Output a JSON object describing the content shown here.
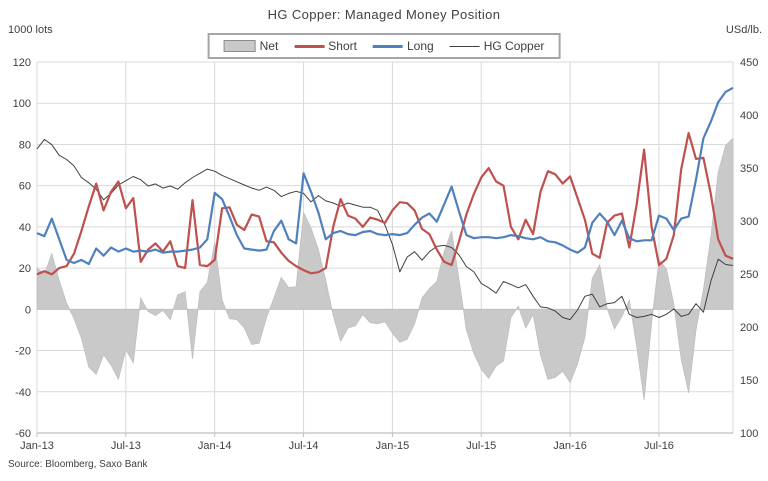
{
  "header": {
    "title": "HG Copper: Managed Money Position",
    "left_unit": "1000 lots",
    "right_unit": "USd/lb."
  },
  "legend": {
    "items": [
      {
        "label": "Net",
        "swatch": "area",
        "color": "#c9c9c9"
      },
      {
        "label": "Short",
        "swatch": "line",
        "color": "#c0504d"
      },
      {
        "label": "Long",
        "swatch": "line",
        "color": "#4f81bd"
      },
      {
        "label": "HG Copper",
        "swatch": "thin-line",
        "color": "#404040"
      }
    ]
  },
  "footer": {
    "source": "Source: Bloomberg, Saxo Bank"
  },
  "colors": {
    "net_fill": "#c9c9c9",
    "net_edge": "#bfbfbf",
    "short": "#c0504d",
    "long": "#4f81bd",
    "copper": "#404040",
    "grid": "#d9d9d9",
    "axis": "#bfbfbf",
    "text": "#404040"
  },
  "chart_data": {
    "type": "line",
    "title": "HG Copper: Managed Money Position",
    "x_range_note": "biweekly points, Jan-2013 to Dec-2016",
    "x_tick_labels": [
      "Jan-13",
      "Jul-13",
      "Jan-14",
      "Jul-14",
      "Jan-15",
      "Jul-15",
      "Jan-16",
      "Jul-16"
    ],
    "x_tick_month_index": [
      0,
      6,
      12,
      18,
      24,
      30,
      36,
      42
    ],
    "months_span": 47,
    "left_axis": {
      "label": "1000 lots",
      "min": -60,
      "max": 120,
      "ticks": [
        120,
        100,
        80,
        60,
        40,
        20,
        0,
        -20,
        -40,
        -60
      ]
    },
    "right_axis": {
      "label": "USd/lb.",
      "min": 100,
      "max": 450,
      "ticks": [
        450,
        400,
        350,
        300,
        250,
        200,
        150,
        100
      ]
    },
    "grid": true,
    "legend_position": "top",
    "series": [
      {
        "name": "Net",
        "axis": "left",
        "type": "area",
        "values": [
          20,
          17,
          27,
          14,
          3,
          -4.5,
          -14,
          -28,
          -31.5,
          -22,
          -27,
          -34,
          -19.5,
          -26,
          5.5,
          -1,
          -3,
          -0.5,
          -5,
          7,
          8.5,
          -24,
          8.5,
          13,
          32.5,
          4.5,
          -4.5,
          -5,
          -9,
          -17,
          -16.5,
          -4,
          5.5,
          15.5,
          10.5,
          11,
          47,
          39.5,
          29,
          14,
          -3,
          -15.5,
          -9,
          -8,
          -2.5,
          -6.5,
          -7,
          -6,
          -11.5,
          -16,
          -14.5,
          -7,
          5.5,
          10,
          13.5,
          28,
          38,
          14.5,
          -10,
          -21.5,
          -29,
          -33.5,
          -27.5,
          -25,
          -4,
          1.5,
          -9,
          -2.5,
          -22,
          -34,
          -33,
          -30,
          -35.5,
          -26.5,
          -13.5,
          15,
          21.5,
          0.5,
          -9.5,
          -3.5,
          4.5,
          -18,
          -44,
          -6.5,
          24,
          19.5,
          2.5,
          -24,
          -40.5,
          -10,
          9.5,
          35,
          66.5,
          79.5,
          83
        ]
      },
      {
        "name": "Short",
        "axis": "left",
        "type": "line",
        "values": [
          17,
          18.5,
          17,
          20,
          21,
          27,
          38,
          50,
          61,
          48,
          57,
          62,
          49,
          54,
          23,
          29,
          32,
          28,
          33,
          21,
          20,
          53,
          21.5,
          21,
          24,
          49,
          49.5,
          41,
          38.5,
          46,
          45,
          33,
          32.5,
          27.5,
          23.5,
          21,
          19,
          17.5,
          18,
          20,
          40,
          53.5,
          45.5,
          44,
          40,
          44.5,
          43.5,
          42,
          48,
          52,
          51.5,
          48,
          39,
          36.5,
          29,
          23,
          21.5,
          33,
          46,
          56,
          64,
          68.5,
          62,
          60,
          40,
          34,
          43.5,
          36.5,
          57,
          67,
          65.5,
          61,
          64.5,
          54,
          43.5,
          27,
          25,
          42,
          45.5,
          46.5,
          30,
          51,
          77.5,
          40,
          21.5,
          24.5,
          36,
          68,
          85.5,
          73,
          73.5,
          56,
          34,
          26,
          24.5
        ]
      },
      {
        "name": "Long",
        "axis": "left",
        "type": "line",
        "values": [
          37,
          35.5,
          44,
          34,
          24,
          22.5,
          24,
          22,
          29.5,
          26,
          30,
          28,
          29.5,
          28,
          28.5,
          28,
          29,
          27.5,
          28,
          28,
          28.5,
          29,
          30,
          34,
          56.5,
          53.5,
          45,
          36,
          29.5,
          29,
          28.5,
          29,
          38,
          43,
          34,
          32,
          66,
          57,
          47,
          34,
          37,
          38,
          36.5,
          36,
          37.5,
          38,
          36.5,
          36,
          36.5,
          36,
          37,
          41,
          44.5,
          46.5,
          42.5,
          51,
          59.5,
          47.5,
          36,
          34.5,
          35,
          35,
          34.5,
          35,
          36,
          35.5,
          34.5,
          34,
          35,
          33,
          32.5,
          31,
          29,
          27.5,
          30,
          42,
          46.5,
          42.5,
          36,
          43,
          34.5,
          33,
          33.5,
          33.5,
          45.5,
          44,
          38.5,
          44,
          45,
          63,
          83,
          91,
          100.5,
          105.5,
          107.5
        ]
      },
      {
        "name": "HG Copper",
        "axis": "right",
        "type": "line",
        "values": [
          368,
          377,
          372,
          362,
          358,
          352,
          341,
          336,
          330,
          320,
          326,
          334,
          338,
          342,
          339,
          333,
          335,
          331,
          333,
          330,
          336,
          341,
          345,
          349,
          347,
          343,
          340,
          337,
          334,
          331,
          329,
          332,
          329,
          323,
          326,
          328,
          326,
          318,
          324,
          319,
          317,
          314,
          317,
          315,
          313,
          313,
          310,
          296,
          278,
          252,
          266,
          271,
          263,
          271,
          276,
          277,
          275,
          268,
          257,
          252,
          241,
          237,
          232,
          243,
          240,
          237,
          240,
          229,
          219,
          218,
          215,
          209,
          207,
          216,
          229,
          231,
          219,
          222,
          223,
          229,
          212,
          209,
          210,
          212,
          209,
          212,
          217,
          210,
          212,
          222,
          214,
          243,
          264,
          259,
          258
        ]
      }
    ]
  }
}
